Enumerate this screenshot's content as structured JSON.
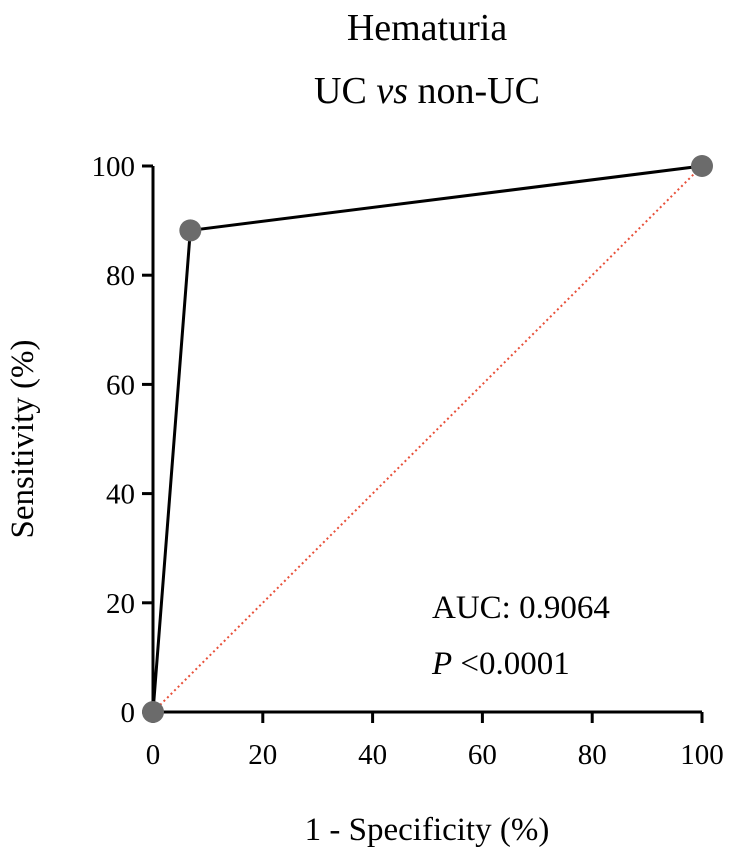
{
  "chart_data": {
    "type": "line",
    "title_line1": "Hematuria",
    "title_line2": {
      "prefix": "UC ",
      "italic": "vs",
      "suffix": " non-UC"
    },
    "xlabel": "1 - Specificity (%)",
    "ylabel": "Sensitivity (%)",
    "xlim": [
      0,
      100
    ],
    "ylim": [
      0,
      100
    ],
    "xticks": [
      "0",
      "20",
      "40",
      "60",
      "80",
      "100"
    ],
    "yticks": [
      "0",
      "20",
      "40",
      "60",
      "80",
      "100"
    ],
    "grid": false,
    "series": [
      {
        "x": [
          0,
          6.8,
          100
        ],
        "y": [
          0,
          88.2,
          100
        ],
        "color": "#000000",
        "marker_color": "#6b6b6b"
      }
    ],
    "reference_line": {
      "x": [
        0,
        100
      ],
      "y": [
        0,
        100
      ],
      "color": "#e8503a",
      "style": "dotted"
    },
    "annotation": {
      "auc": "AUC: 0.9064",
      "p_italic": "P",
      "p_value": " <0.0001"
    }
  }
}
